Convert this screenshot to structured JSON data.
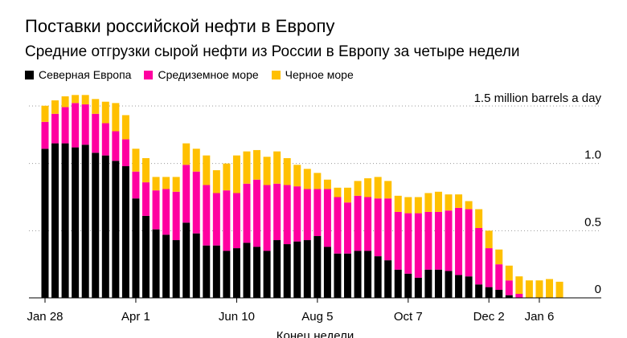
{
  "title": "Поставки российской нефти в Европу",
  "subtitle": "Средние отгрузки сырой нефти из России в Европу за четыре недели",
  "colors": {
    "north": "#000000",
    "med": "#ff00a0",
    "black_sea": "#ffc000"
  },
  "chart_data": {
    "type": "bar",
    "stacked": true,
    "unit_label": "1.5 million barrels a day",
    "xlabel": "Конец недели",
    "ylabel": "",
    "ylim": [
      0,
      1.5
    ],
    "yticks": [
      {
        "value": 0,
        "label": "0"
      },
      {
        "value": 0.5,
        "label": "0.5"
      },
      {
        "value": 1.0,
        "label": "1.0"
      }
    ],
    "xticks": [
      {
        "index": 0,
        "label": "Jan 28"
      },
      {
        "index": 9,
        "label": "Apr 1"
      },
      {
        "index": 19,
        "label": "Jun 10"
      },
      {
        "index": 27,
        "label": "Aug 5"
      },
      {
        "index": 36,
        "label": "Oct 7"
      },
      {
        "index": 44,
        "label": "Dec 2"
      },
      {
        "index": 49,
        "label": "Jan 6"
      }
    ],
    "legend_position": "top-left",
    "series": [
      {
        "name": "Северная Европа",
        "color": "#000000",
        "values": [
          1.11,
          1.15,
          1.15,
          1.12,
          1.14,
          1.08,
          1.06,
          1.02,
          0.98,
          0.74,
          0.61,
          0.51,
          0.47,
          0.43,
          0.56,
          0.48,
          0.39,
          0.39,
          0.35,
          0.37,
          0.41,
          0.38,
          0.35,
          0.43,
          0.4,
          0.42,
          0.43,
          0.46,
          0.38,
          0.33,
          0.33,
          0.35,
          0.35,
          0.31,
          0.28,
          0.21,
          0.18,
          0.15,
          0.21,
          0.21,
          0.2,
          0.17,
          0.16,
          0.1,
          0.08,
          0.06,
          0.02,
          0.0,
          0.0,
          0.0,
          0.0,
          0.0
        ]
      },
      {
        "name": "Средиземное море",
        "color": "#ff00a0",
        "values": [
          0.2,
          0.22,
          0.27,
          0.33,
          0.3,
          0.29,
          0.24,
          0.22,
          0.2,
          0.2,
          0.25,
          0.29,
          0.34,
          0.36,
          0.43,
          0.46,
          0.45,
          0.39,
          0.45,
          0.41,
          0.44,
          0.5,
          0.49,
          0.42,
          0.44,
          0.41,
          0.38,
          0.35,
          0.43,
          0.42,
          0.38,
          0.41,
          0.4,
          0.43,
          0.46,
          0.43,
          0.45,
          0.48,
          0.43,
          0.43,
          0.45,
          0.5,
          0.5,
          0.42,
          0.29,
          0.19,
          0.11,
          0.03,
          0.0,
          0.0,
          0.0,
          0.0
        ]
      },
      {
        "name": "Черное море",
        "color": "#ffc000",
        "values": [
          0.12,
          0.1,
          0.08,
          0.06,
          0.07,
          0.11,
          0.16,
          0.21,
          0.18,
          0.17,
          0.18,
          0.1,
          0.09,
          0.11,
          0.16,
          0.17,
          0.22,
          0.17,
          0.2,
          0.28,
          0.24,
          0.22,
          0.21,
          0.24,
          0.2,
          0.16,
          0.15,
          0.12,
          0.07,
          0.07,
          0.11,
          0.11,
          0.14,
          0.16,
          0.13,
          0.12,
          0.12,
          0.12,
          0.14,
          0.15,
          0.12,
          0.1,
          0.06,
          0.14,
          0.13,
          0.11,
          0.11,
          0.13,
          0.13,
          0.13,
          0.14,
          0.12
        ]
      }
    ]
  }
}
